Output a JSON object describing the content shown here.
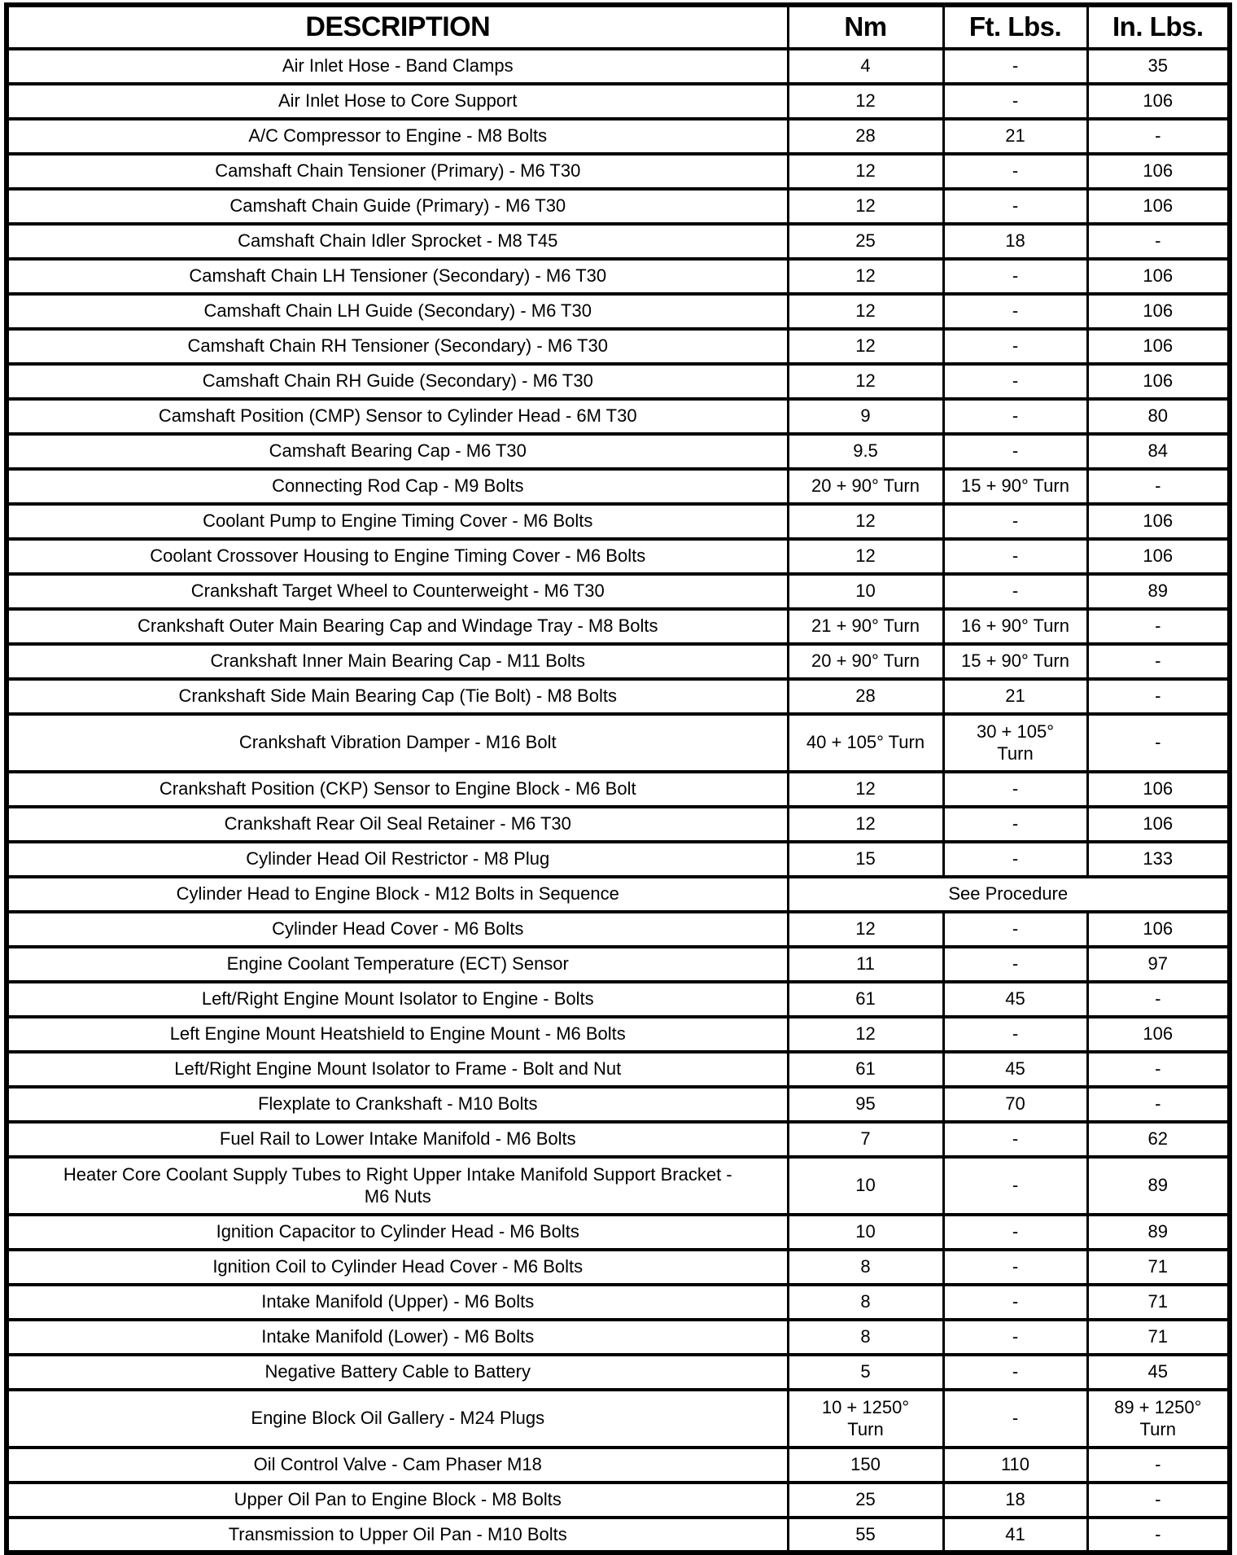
{
  "table": {
    "headers": {
      "description": "DESCRIPTION",
      "nm": "Nm",
      "ft_lbs": "Ft. Lbs.",
      "in_lbs": "In. Lbs."
    },
    "rows": [
      {
        "description": "Air Inlet Hose - Band Clamps",
        "nm": "4",
        "ft_lbs": "-",
        "in_lbs": "35"
      },
      {
        "description": "Air Inlet Hose to Core Support",
        "nm": "12",
        "ft_lbs": "-",
        "in_lbs": "106"
      },
      {
        "description": "A/C Compressor to Engine - M8 Bolts",
        "nm": "28",
        "ft_lbs": "21",
        "in_lbs": "-"
      },
      {
        "description": "Camshaft Chain Tensioner (Primary) - M6 T30",
        "nm": "12",
        "ft_lbs": "-",
        "in_lbs": "106"
      },
      {
        "description": "Camshaft Chain Guide (Primary) - M6 T30",
        "nm": "12",
        "ft_lbs": "-",
        "in_lbs": "106"
      },
      {
        "description": "Camshaft Chain Idler Sprocket - M8 T45",
        "nm": "25",
        "ft_lbs": "18",
        "in_lbs": "-"
      },
      {
        "description": "Camshaft Chain LH Tensioner (Secondary) - M6 T30",
        "nm": "12",
        "ft_lbs": "-",
        "in_lbs": "106"
      },
      {
        "description": "Camshaft Chain LH Guide (Secondary) - M6 T30",
        "nm": "12",
        "ft_lbs": "-",
        "in_lbs": "106"
      },
      {
        "description": "Camshaft Chain RH Tensioner (Secondary) - M6 T30",
        "nm": "12",
        "ft_lbs": "-",
        "in_lbs": "106"
      },
      {
        "description": "Camshaft Chain RH Guide (Secondary) - M6 T30",
        "nm": "12",
        "ft_lbs": "-",
        "in_lbs": "106"
      },
      {
        "description": "Camshaft Position (CMP) Sensor to Cylinder Head - 6M T30",
        "nm": "9",
        "ft_lbs": "-",
        "in_lbs": "80"
      },
      {
        "description": "Camshaft Bearing Cap - M6 T30",
        "nm": "9.5",
        "ft_lbs": "-",
        "in_lbs": "84"
      },
      {
        "description": "Connecting Rod Cap - M9 Bolts",
        "nm": "20 + 90° Turn",
        "ft_lbs": "15 + 90° Turn",
        "in_lbs": "-"
      },
      {
        "description": "Coolant Pump to Engine Timing Cover - M6 Bolts",
        "nm": "12",
        "ft_lbs": "-",
        "in_lbs": "106"
      },
      {
        "description": "Coolant Crossover Housing to Engine Timing Cover - M6 Bolts",
        "nm": "12",
        "ft_lbs": "-",
        "in_lbs": "106"
      },
      {
        "description": "Crankshaft Target Wheel to Counterweight - M6 T30",
        "nm": "10",
        "ft_lbs": "-",
        "in_lbs": "89"
      },
      {
        "description": "Crankshaft Outer Main Bearing Cap and Windage Tray - M8 Bolts",
        "nm": "21 + 90° Turn",
        "ft_lbs": "16 + 90° Turn",
        "in_lbs": "-"
      },
      {
        "description": "Crankshaft Inner Main Bearing Cap - M11 Bolts",
        "nm": "20 + 90° Turn",
        "ft_lbs": "15 + 90° Turn",
        "in_lbs": "-"
      },
      {
        "description": "Crankshaft Side Main Bearing Cap (Tie Bolt) - M8 Bolts",
        "nm": "28",
        "ft_lbs": "21",
        "in_lbs": "-"
      },
      {
        "description": "Crankshaft Vibration Damper - M16 Bolt",
        "nm": "40 + 105° Turn",
        "ft_lbs": "30 + 105°\nTurn",
        "in_lbs": "-",
        "tall": true
      },
      {
        "description": "Crankshaft Position (CKP) Sensor to Engine Block - M6 Bolt",
        "nm": "12",
        "ft_lbs": "-",
        "in_lbs": "106"
      },
      {
        "description": "Crankshaft Rear Oil Seal Retainer - M6 T30",
        "nm": "12",
        "ft_lbs": "-",
        "in_lbs": "106"
      },
      {
        "description": "Cylinder Head Oil Restrictor - M8 Plug",
        "nm": "15",
        "ft_lbs": "-",
        "in_lbs": "133"
      },
      {
        "description": "Cylinder Head to Engine Block - M12 Bolts in Sequence",
        "merged": "See Procedure"
      },
      {
        "description": "Cylinder Head Cover - M6 Bolts",
        "nm": "12",
        "ft_lbs": "-",
        "in_lbs": "106"
      },
      {
        "description": "Engine Coolant Temperature (ECT) Sensor",
        "nm": "11",
        "ft_lbs": "-",
        "in_lbs": "97"
      },
      {
        "description": "Left/Right Engine Mount Isolator to Engine - Bolts",
        "nm": "61",
        "ft_lbs": "45",
        "in_lbs": "-"
      },
      {
        "description": "Left Engine Mount Heatshield to Engine Mount - M6 Bolts",
        "nm": "12",
        "ft_lbs": "-",
        "in_lbs": "106"
      },
      {
        "description": "Left/Right Engine Mount Isolator to Frame - Bolt and Nut",
        "nm": "61",
        "ft_lbs": "45",
        "in_lbs": "-"
      },
      {
        "description": "Flexplate to Crankshaft - M10 Bolts",
        "nm": "95",
        "ft_lbs": "70",
        "in_lbs": "-"
      },
      {
        "description": "Fuel Rail to Lower Intake Manifold - M6 Bolts",
        "nm": "7",
        "ft_lbs": "-",
        "in_lbs": "62"
      },
      {
        "description": "Heater Core Coolant Supply Tubes to Right Upper Intake Manifold Support Bracket -\nM6 Nuts",
        "nm": "10",
        "ft_lbs": "-",
        "in_lbs": "89",
        "tall": true
      },
      {
        "description": "Ignition Capacitor to Cylinder Head - M6 Bolts",
        "nm": "10",
        "ft_lbs": "-",
        "in_lbs": "89"
      },
      {
        "description": "Ignition Coil to Cylinder Head Cover - M6 Bolts",
        "nm": "8",
        "ft_lbs": "-",
        "in_lbs": "71"
      },
      {
        "description": "Intake Manifold (Upper) - M6 Bolts",
        "nm": "8",
        "ft_lbs": "-",
        "in_lbs": "71"
      },
      {
        "description": "Intake Manifold (Lower) - M6 Bolts",
        "nm": "8",
        "ft_lbs": "-",
        "in_lbs": "71"
      },
      {
        "description": "Negative Battery Cable to Battery",
        "nm": "5",
        "ft_lbs": "-",
        "in_lbs": "45"
      },
      {
        "description": "Engine Block Oil Gallery - M24 Plugs",
        "nm": "10 + 1250°\nTurn",
        "ft_lbs": "-",
        "in_lbs": "89 + 1250°\nTurn",
        "tall": true
      },
      {
        "description": "Oil Control Valve - Cam Phaser M18",
        "nm": "150",
        "ft_lbs": "110",
        "in_lbs": "-"
      },
      {
        "description": "Upper Oil Pan to Engine Block - M8 Bolts",
        "nm": "25",
        "ft_lbs": "18",
        "in_lbs": "-"
      },
      {
        "description": "Transmission to Upper Oil Pan - M10 Bolts",
        "nm": "55",
        "ft_lbs": "41",
        "in_lbs": "-"
      }
    ]
  }
}
